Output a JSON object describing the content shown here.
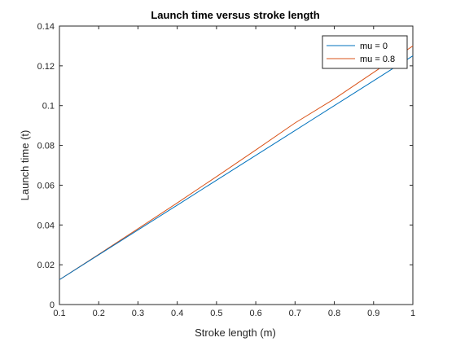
{
  "chart_data": {
    "type": "line",
    "title": "Launch time versus stroke length",
    "xlabel": "Stroke length (m)",
    "ylabel": "Launch time (t)",
    "xlim": [
      0.1,
      1
    ],
    "ylim": [
      0,
      0.14
    ],
    "xticks": [
      0.1,
      0.2,
      0.3,
      0.4,
      0.5,
      0.6,
      0.7,
      0.8,
      0.9,
      1
    ],
    "xtick_labels": [
      "0.1",
      "0.2",
      "0.3",
      "0.4",
      "0.5",
      "0.6",
      "0.7",
      "0.8",
      "0.9",
      "1"
    ],
    "yticks": [
      0,
      0.02,
      0.04,
      0.06,
      0.08,
      0.1,
      0.12,
      0.14
    ],
    "ytick_labels": [
      "0",
      "0.02",
      "0.04",
      "0.06",
      "0.08",
      "0.1",
      "0.12",
      "0.14"
    ],
    "grid": false,
    "legend_position": "top-right",
    "series": [
      {
        "name": "mu = 0",
        "color": "#0072BD",
        "x": [
          0.1,
          0.2,
          0.3,
          0.4,
          0.5,
          0.6,
          0.7,
          0.8,
          0.9,
          1.0
        ],
        "y": [
          0.0125,
          0.025,
          0.0375,
          0.05,
          0.0625,
          0.075,
          0.0875,
          0.1,
          0.1125,
          0.125
        ]
      },
      {
        "name": "mu = 0.8",
        "color": "#D95319",
        "x": [
          0.1,
          0.2,
          0.3,
          0.4,
          0.5,
          0.6,
          0.7,
          0.8,
          0.9,
          1.0
        ],
        "y": [
          0.0125,
          0.0252,
          0.0381,
          0.0511,
          0.0643,
          0.0777,
          0.0913,
          0.1034,
          0.1167,
          0.13
        ]
      }
    ]
  }
}
